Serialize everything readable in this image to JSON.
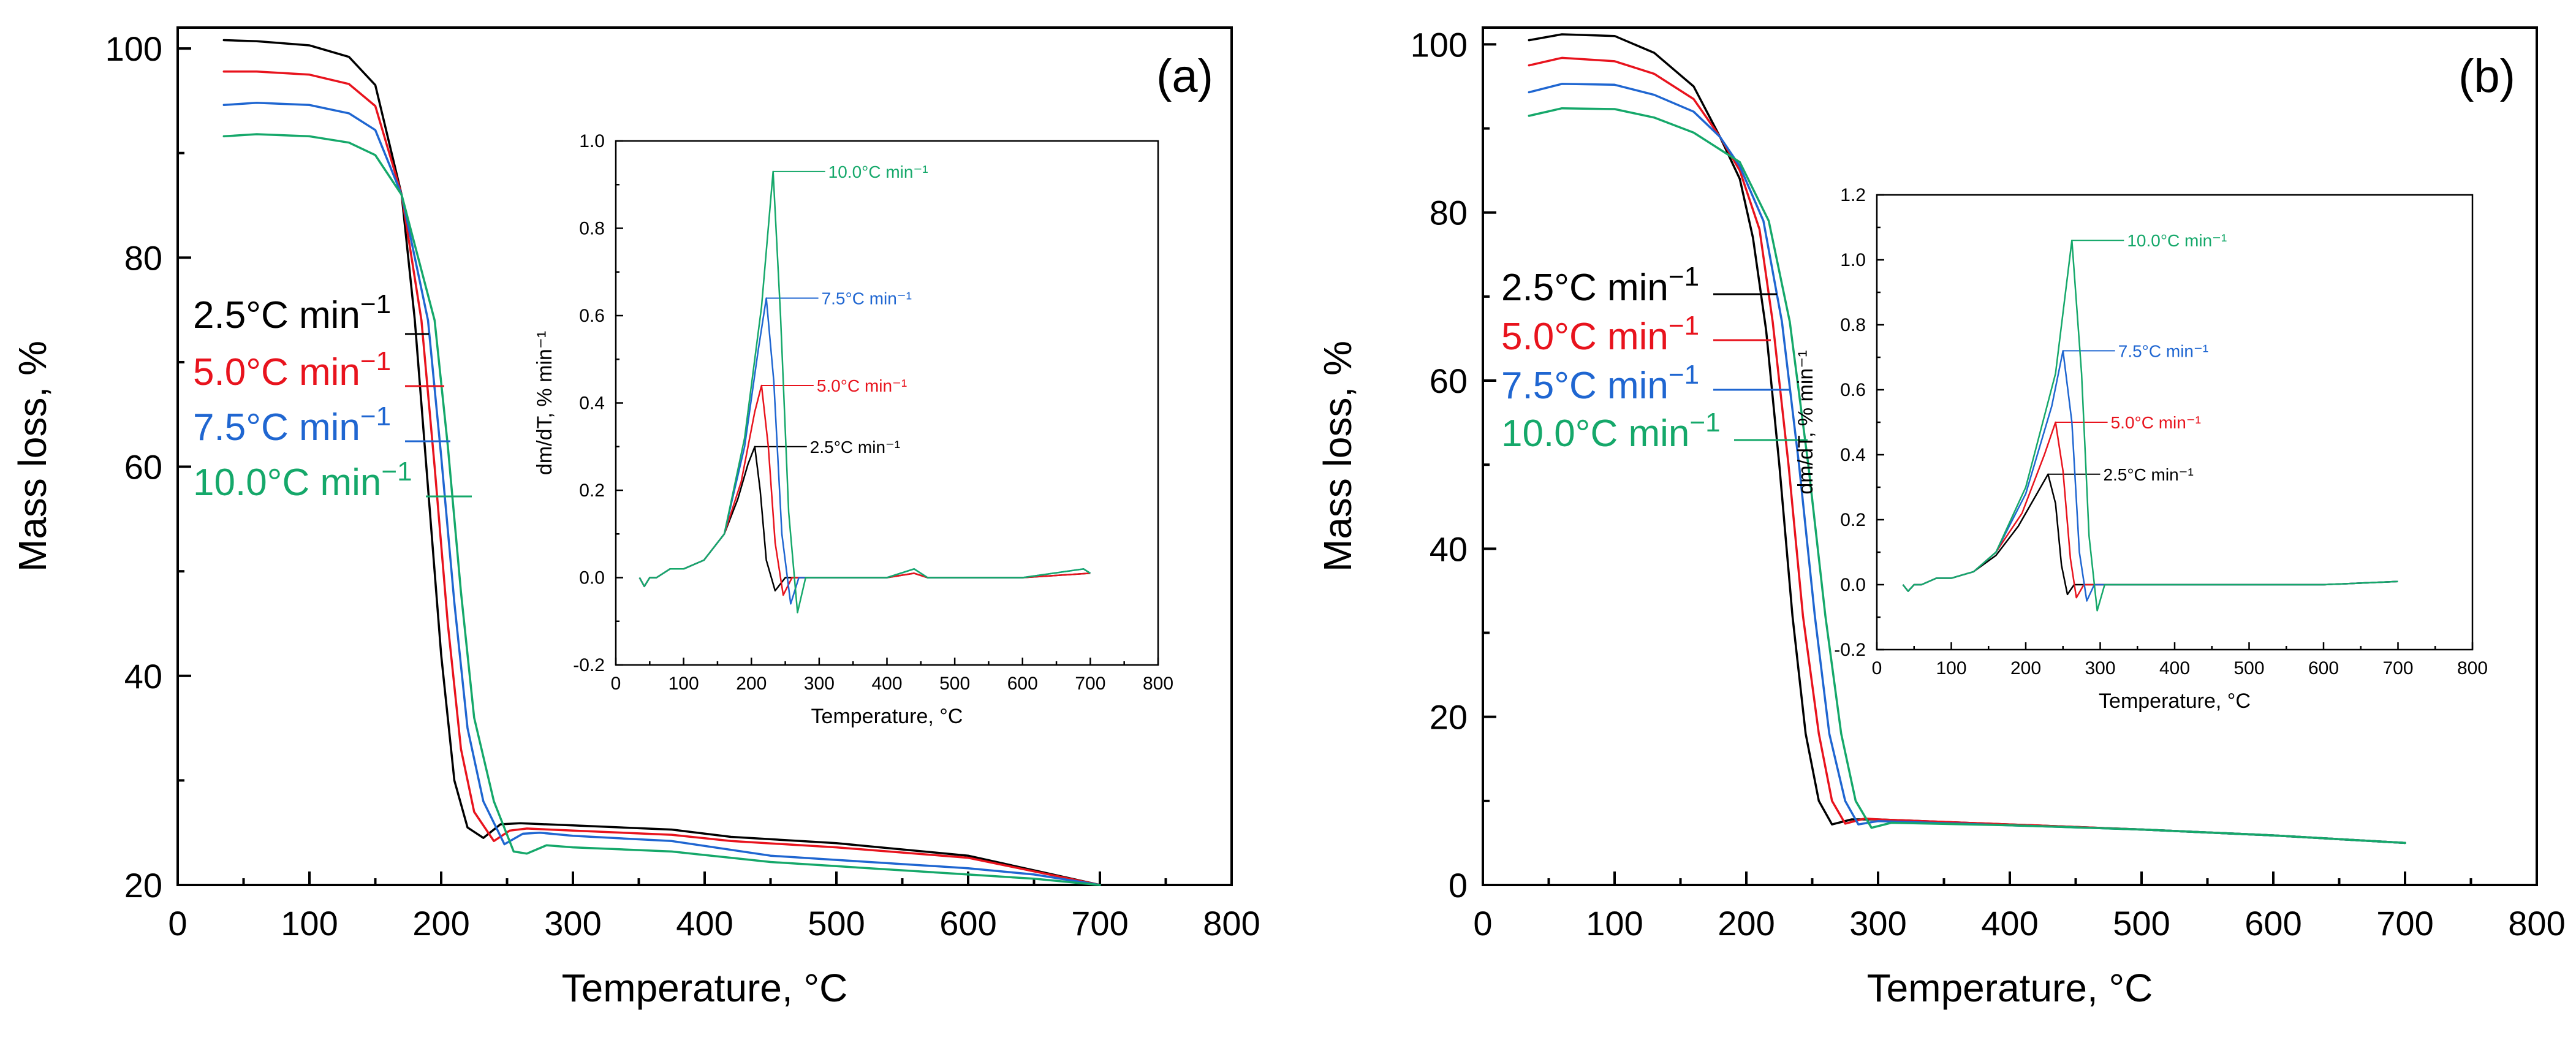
{
  "chart_data": [
    {
      "type": "line",
      "panel_label": "(a)",
      "xlabel": "Temperature, °C",
      "ylabel": "Mass loss, %",
      "xlim": [
        0,
        800
      ],
      "ylim": [
        20,
        102
      ],
      "xticks": [
        0,
        100,
        200,
        300,
        400,
        500,
        600,
        700,
        800
      ],
      "yticks": [
        20,
        40,
        60,
        80,
        100
      ],
      "legend_unit": "min",
      "legend_exp": "−1",
      "series": [
        {
          "name": "2.5°C",
          "color": "#000000",
          "x": [
            35,
            60,
            100,
            130,
            150,
            170,
            180,
            190,
            200,
            210,
            220,
            232,
            245,
            260,
            300,
            375,
            420,
            500,
            600,
            650,
            700
          ],
          "y": [
            100.8,
            100.7,
            100.3,
            99.2,
            96.5,
            86,
            74,
            58,
            42,
            30,
            25.5,
            24.5,
            25.8,
            25.9,
            25.7,
            25.3,
            24.6,
            24,
            22.8,
            21.4,
            20.0
          ]
        },
        {
          "name": "5.0°C",
          "color": "#e8131d",
          "x": [
            35,
            60,
            100,
            130,
            150,
            170,
            185,
            195,
            205,
            215,
            225,
            240,
            252,
            265,
            300,
            375,
            420,
            500,
            600,
            650,
            700
          ],
          "y": [
            97.8,
            97.8,
            97.5,
            96.6,
            94.5,
            86,
            74,
            60,
            45,
            33,
            27,
            24.2,
            25.2,
            25.4,
            25.2,
            24.8,
            24.2,
            23.6,
            22.6,
            21.3,
            20.0
          ]
        },
        {
          "name": "7.5°C",
          "color": "#1f66d1",
          "x": [
            35,
            60,
            100,
            130,
            150,
            170,
            190,
            200,
            210,
            220,
            232,
            248,
            262,
            275,
            300,
            375,
            450,
            500,
            600,
            650,
            700
          ],
          "y": [
            94.6,
            94.8,
            94.6,
            93.8,
            92.2,
            86,
            74,
            61,
            47,
            35,
            28,
            23.9,
            24.9,
            25.0,
            24.7,
            24.2,
            22.8,
            22.4,
            21.6,
            21.0,
            20.0
          ]
        },
        {
          "name": "10.0°C",
          "color": "#15a86a",
          "x": [
            35,
            60,
            100,
            130,
            150,
            170,
            195,
            205,
            215,
            225,
            240,
            255,
            265,
            280,
            300,
            375,
            450,
            500,
            600,
            650,
            700
          ],
          "y": [
            91.6,
            91.8,
            91.6,
            91.0,
            89.8,
            86,
            74,
            62,
            48,
            36,
            28,
            23.2,
            23.0,
            23.8,
            23.6,
            23.2,
            22.2,
            21.8,
            21.0,
            20.6,
            20.0
          ]
        }
      ],
      "inset": {
        "xlabel": "Temperature, °C",
        "ylabel": "dm/dT, % min⁻¹",
        "xlim": [
          0,
          800
        ],
        "ylim": [
          -0.2,
          1.0
        ],
        "xticks": [
          0,
          100,
          200,
          300,
          400,
          500,
          600,
          700,
          800
        ],
        "yticks": [
          -0.2,
          0.0,
          0.2,
          0.4,
          0.6,
          0.8,
          1.0
        ],
        "series": [
          {
            "name": "2.5°C min⁻¹",
            "color": "#000000",
            "peak_x": 205,
            "peak_y": 0.3,
            "x": [
              35,
              42,
              50,
              60,
              80,
              100,
              130,
              160,
              180,
              195,
              205,
              213,
              222,
              235,
              250,
              300,
              400,
              440,
              460,
              600,
              700
            ],
            "y": [
              0.0,
              -0.02,
              0.0,
              0.0,
              0.02,
              0.02,
              0.04,
              0.1,
              0.18,
              0.26,
              0.3,
              0.2,
              0.04,
              -0.03,
              0.0,
              0.0,
              0.0,
              0.01,
              0.0,
              0.0,
              0.01
            ]
          },
          {
            "name": "5.0°C min⁻¹",
            "color": "#e8131d",
            "peak_x": 215,
            "peak_y": 0.44,
            "x": [
              35,
              42,
              50,
              60,
              80,
              100,
              130,
              160,
              185,
              205,
              215,
              225,
              235,
              247,
              260,
              300,
              400,
              440,
              460,
              600,
              700
            ],
            "y": [
              0.0,
              -0.02,
              0.0,
              0.0,
              0.02,
              0.02,
              0.04,
              0.1,
              0.22,
              0.38,
              0.44,
              0.3,
              0.08,
              -0.04,
              0.0,
              0.0,
              0.0,
              0.01,
              0.0,
              0.0,
              0.01
            ]
          },
          {
            "name": "7.5°C min⁻¹",
            "color": "#1f66d1",
            "peak_x": 222,
            "peak_y": 0.64,
            "x": [
              35,
              42,
              50,
              60,
              80,
              100,
              130,
              160,
              190,
              210,
              222,
              233,
              245,
              258,
              270,
              300,
              400,
              440,
              460,
              600,
              690,
              700
            ],
            "y": [
              0.0,
              -0.02,
              0.0,
              0.0,
              0.02,
              0.02,
              0.04,
              0.1,
              0.3,
              0.52,
              0.64,
              0.45,
              0.1,
              -0.06,
              0.0,
              0.0,
              0.0,
              0.02,
              0.0,
              0.0,
              0.02,
              0.01
            ]
          },
          {
            "name": "10.0°C min⁻¹",
            "color": "#15a86a",
            "peak_x": 232,
            "peak_y": 0.93,
            "x": [
              35,
              42,
              50,
              60,
              80,
              100,
              130,
              160,
              190,
              215,
              232,
              243,
              255,
              268,
              280,
              300,
              400,
              440,
              460,
              600,
              690,
              700
            ],
            "y": [
              0.0,
              -0.02,
              0.0,
              0.0,
              0.02,
              0.02,
              0.04,
              0.1,
              0.32,
              0.62,
              0.93,
              0.6,
              0.15,
              -0.08,
              0.0,
              0.0,
              0.0,
              0.02,
              0.0,
              0.0,
              0.02,
              0.01
            ]
          }
        ]
      }
    },
    {
      "type": "line",
      "panel_label": "(b)",
      "xlabel": "Temperature, °C",
      "ylabel": "Mass loss, %",
      "xlim": [
        0,
        800
      ],
      "ylim": [
        0,
        102
      ],
      "xticks": [
        0,
        100,
        200,
        300,
        400,
        500,
        600,
        700,
        800
      ],
      "yticks": [
        0,
        20,
        40,
        60,
        80,
        100
      ],
      "legend_unit": "min",
      "legend_exp": "−1",
      "series": [
        {
          "name": "2.5°C",
          "color": "#000000",
          "x": [
            35,
            60,
            100,
            130,
            160,
            180,
            195,
            205,
            215,
            225,
            235,
            245,
            255,
            265,
            280,
            300,
            400,
            500,
            600,
            700
          ],
          "y": [
            100.5,
            101.2,
            101.0,
            99.0,
            95.0,
            89,
            84,
            77,
            66,
            50,
            32,
            18,
            10,
            7.2,
            7.8,
            7.8,
            7.2,
            6.6,
            5.9,
            5.0
          ]
        },
        {
          "name": "5.0°C",
          "color": "#e8131d",
          "x": [
            35,
            60,
            100,
            130,
            160,
            180,
            195,
            210,
            220,
            232,
            243,
            255,
            265,
            275,
            290,
            300,
            400,
            500,
            600,
            700
          ],
          "y": [
            97.5,
            98.4,
            98.0,
            96.5,
            93.5,
            89,
            85,
            78,
            67,
            50,
            32,
            18,
            10,
            7.3,
            7.9,
            7.8,
            7.2,
            6.6,
            5.9,
            5.0
          ]
        },
        {
          "name": "7.5°C",
          "color": "#1f66d1",
          "x": [
            35,
            60,
            100,
            130,
            160,
            180,
            195,
            213,
            227,
            240,
            252,
            263,
            275,
            285,
            300,
            400,
            500,
            600,
            700
          ],
          "y": [
            94.3,
            95.3,
            95.2,
            94.0,
            92.0,
            89,
            85.5,
            79,
            67,
            50,
            32,
            18,
            10,
            7.2,
            7.6,
            7.1,
            6.6,
            5.9,
            5.0
          ]
        },
        {
          "name": "10.0°C",
          "color": "#15a86a",
          "x": [
            35,
            60,
            100,
            130,
            160,
            180,
            195,
            217,
            233,
            247,
            260,
            272,
            283,
            295,
            310,
            400,
            500,
            600,
            700
          ],
          "y": [
            91.5,
            92.4,
            92.3,
            91.3,
            89.5,
            87.5,
            86,
            79,
            67,
            50,
            32,
            18,
            10,
            6.8,
            7.4,
            7.1,
            6.6,
            5.9,
            5.0
          ]
        }
      ],
      "inset": {
        "xlabel": "Temperature, °C",
        "ylabel": "dm/dT, % min⁻¹",
        "xlim": [
          0,
          800
        ],
        "ylim": [
          -0.2,
          1.2
        ],
        "xticks": [
          0,
          100,
          200,
          300,
          400,
          500,
          600,
          700,
          800
        ],
        "yticks": [
          -0.2,
          0.0,
          0.2,
          0.4,
          0.6,
          0.8,
          1.0,
          1.2
        ],
        "series": [
          {
            "name": "2.5°C min⁻¹",
            "color": "#000000",
            "peak_x": 230,
            "peak_y": 0.34,
            "x": [
              35,
              42,
              50,
              60,
              80,
              100,
              130,
              160,
              190,
              215,
              230,
              240,
              248,
              256,
              265,
              300,
              400,
              500,
              600,
              700
            ],
            "y": [
              0.0,
              -0.02,
              0.0,
              0.0,
              0.02,
              0.02,
              0.04,
              0.09,
              0.18,
              0.28,
              0.34,
              0.25,
              0.06,
              -0.03,
              0.0,
              0.0,
              0.0,
              0.0,
              0.0,
              0.01
            ]
          },
          {
            "name": "5.0°C min⁻¹",
            "color": "#e8131d",
            "peak_x": 240,
            "peak_y": 0.5,
            "x": [
              35,
              42,
              50,
              60,
              80,
              100,
              130,
              160,
              195,
              225,
              240,
              250,
              260,
              268,
              278,
              300,
              400,
              500,
              600,
              700
            ],
            "y": [
              0.0,
              -0.02,
              0.0,
              0.0,
              0.02,
              0.02,
              0.04,
              0.1,
              0.22,
              0.4,
              0.5,
              0.35,
              0.08,
              -0.04,
              0.0,
              0.0,
              0.0,
              0.0,
              0.0,
              0.01
            ]
          },
          {
            "name": "7.5°C min⁻¹",
            "color": "#1f66d1",
            "peak_x": 250,
            "peak_y": 0.72,
            "x": [
              35,
              42,
              50,
              60,
              80,
              100,
              130,
              160,
              200,
              235,
              250,
              262,
              272,
              282,
              292,
              300,
              400,
              500,
              600,
              700
            ],
            "y": [
              0.0,
              -0.02,
              0.0,
              0.0,
              0.02,
              0.02,
              0.04,
              0.1,
              0.28,
              0.55,
              0.72,
              0.5,
              0.1,
              -0.05,
              0.0,
              0.0,
              0.0,
              0.0,
              0.0,
              0.01
            ]
          },
          {
            "name": "10.0°C min⁻¹",
            "color": "#15a86a",
            "peak_x": 262,
            "peak_y": 1.06,
            "x": [
              35,
              42,
              50,
              60,
              80,
              100,
              130,
              160,
              200,
              240,
              262,
              275,
              285,
              296,
              306,
              320,
              400,
              500,
              600,
              700
            ],
            "y": [
              0.0,
              -0.02,
              0.0,
              0.0,
              0.02,
              0.02,
              0.04,
              0.1,
              0.3,
              0.65,
              1.06,
              0.65,
              0.15,
              -0.08,
              0.0,
              0.0,
              0.0,
              0.0,
              0.0,
              0.01
            ]
          }
        ]
      }
    }
  ]
}
